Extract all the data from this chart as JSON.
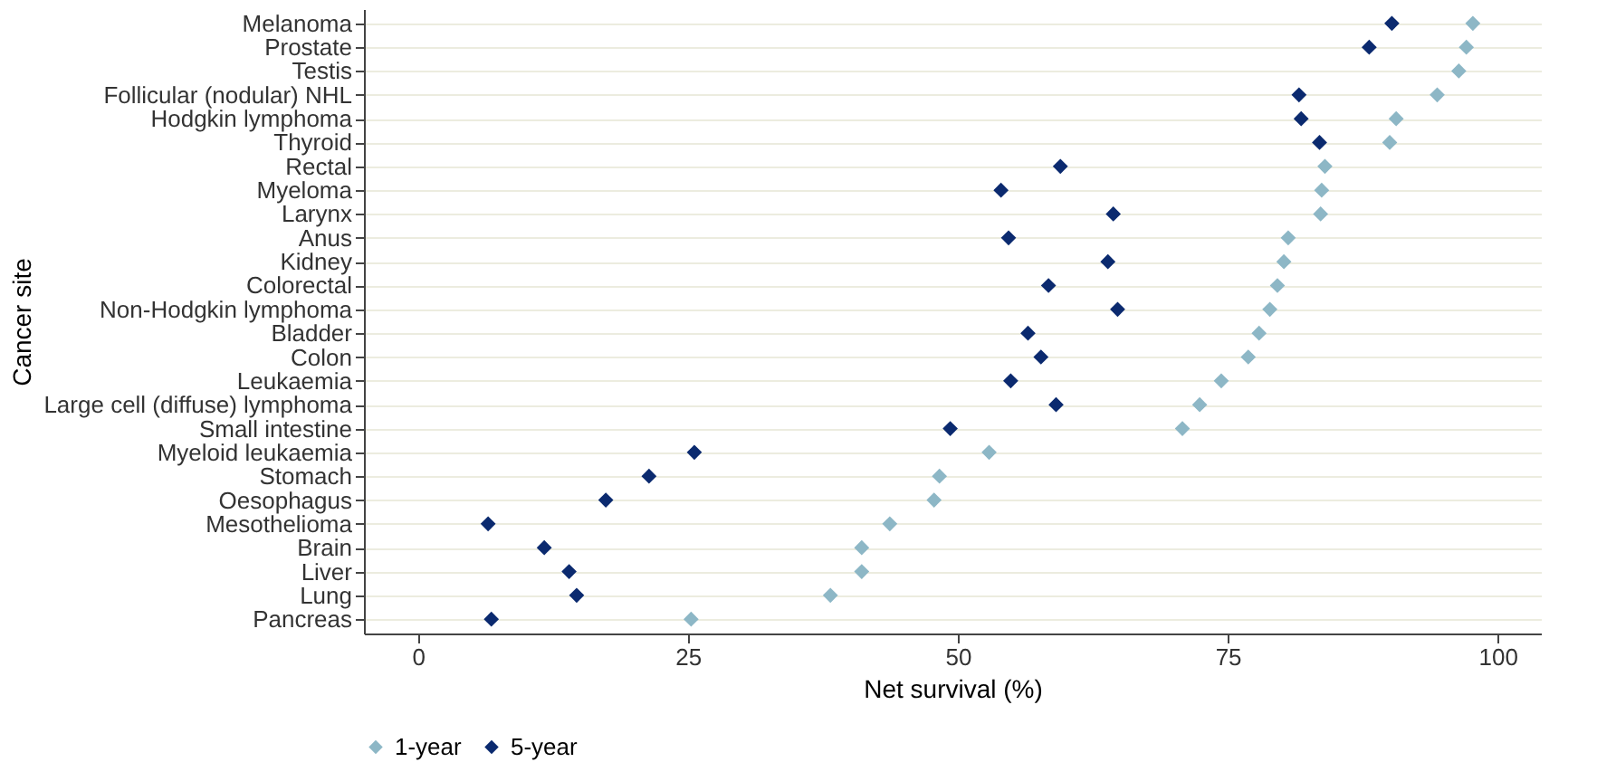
{
  "chart_data": {
    "type": "scatter",
    "xlabel": "Net survival (%)",
    "ylabel": "Cancer site",
    "orientation": "horizontal",
    "categories": [
      "Melanoma",
      "Prostate",
      "Testis",
      "Follicular (nodular) NHL",
      "Hodgkin lymphoma",
      "Thyroid",
      "Rectal",
      "Myeloma",
      "Larynx",
      "Anus",
      "Kidney",
      "Colorectal",
      "Non-Hodgkin lymphoma",
      "Bladder",
      "Colon",
      "Leukaemia",
      "Large cell (diffuse) lymphoma",
      "Small intestine",
      "Myeloid leukaemia",
      "Stomach",
      "Oesophagus",
      "Mesothelioma",
      "Brain",
      "Liver",
      "Lung",
      "Pancreas"
    ],
    "series": [
      {
        "name": "1-year",
        "color": "#8db7c6",
        "values": [
          97.7,
          97.1,
          96.4,
          94.4,
          90.6,
          90.0,
          84.0,
          83.7,
          83.6,
          80.6,
          80.2,
          79.6,
          78.9,
          77.9,
          76.9,
          74.4,
          72.4,
          70.8,
          52.9,
          48.3,
          47.8,
          43.7,
          41.1,
          41.1,
          38.2,
          25.3
        ]
      },
      {
        "name": "5-year",
        "color": "#0b2a6f",
        "values": [
          90.2,
          88.1,
          null,
          81.6,
          81.8,
          83.5,
          59.5,
          54.0,
          64.4,
          54.7,
          63.9,
          58.4,
          64.8,
          56.5,
          57.7,
          54.9,
          59.1,
          49.3,
          25.6,
          21.4,
          17.4,
          6.5,
          11.7,
          14.0,
          14.7,
          6.8
        ]
      }
    ],
    "xlim": [
      -5,
      104
    ],
    "xticks": [
      0,
      25,
      50,
      75,
      100
    ],
    "grid": "y",
    "legend": "bottom",
    "marker": "diamond"
  }
}
